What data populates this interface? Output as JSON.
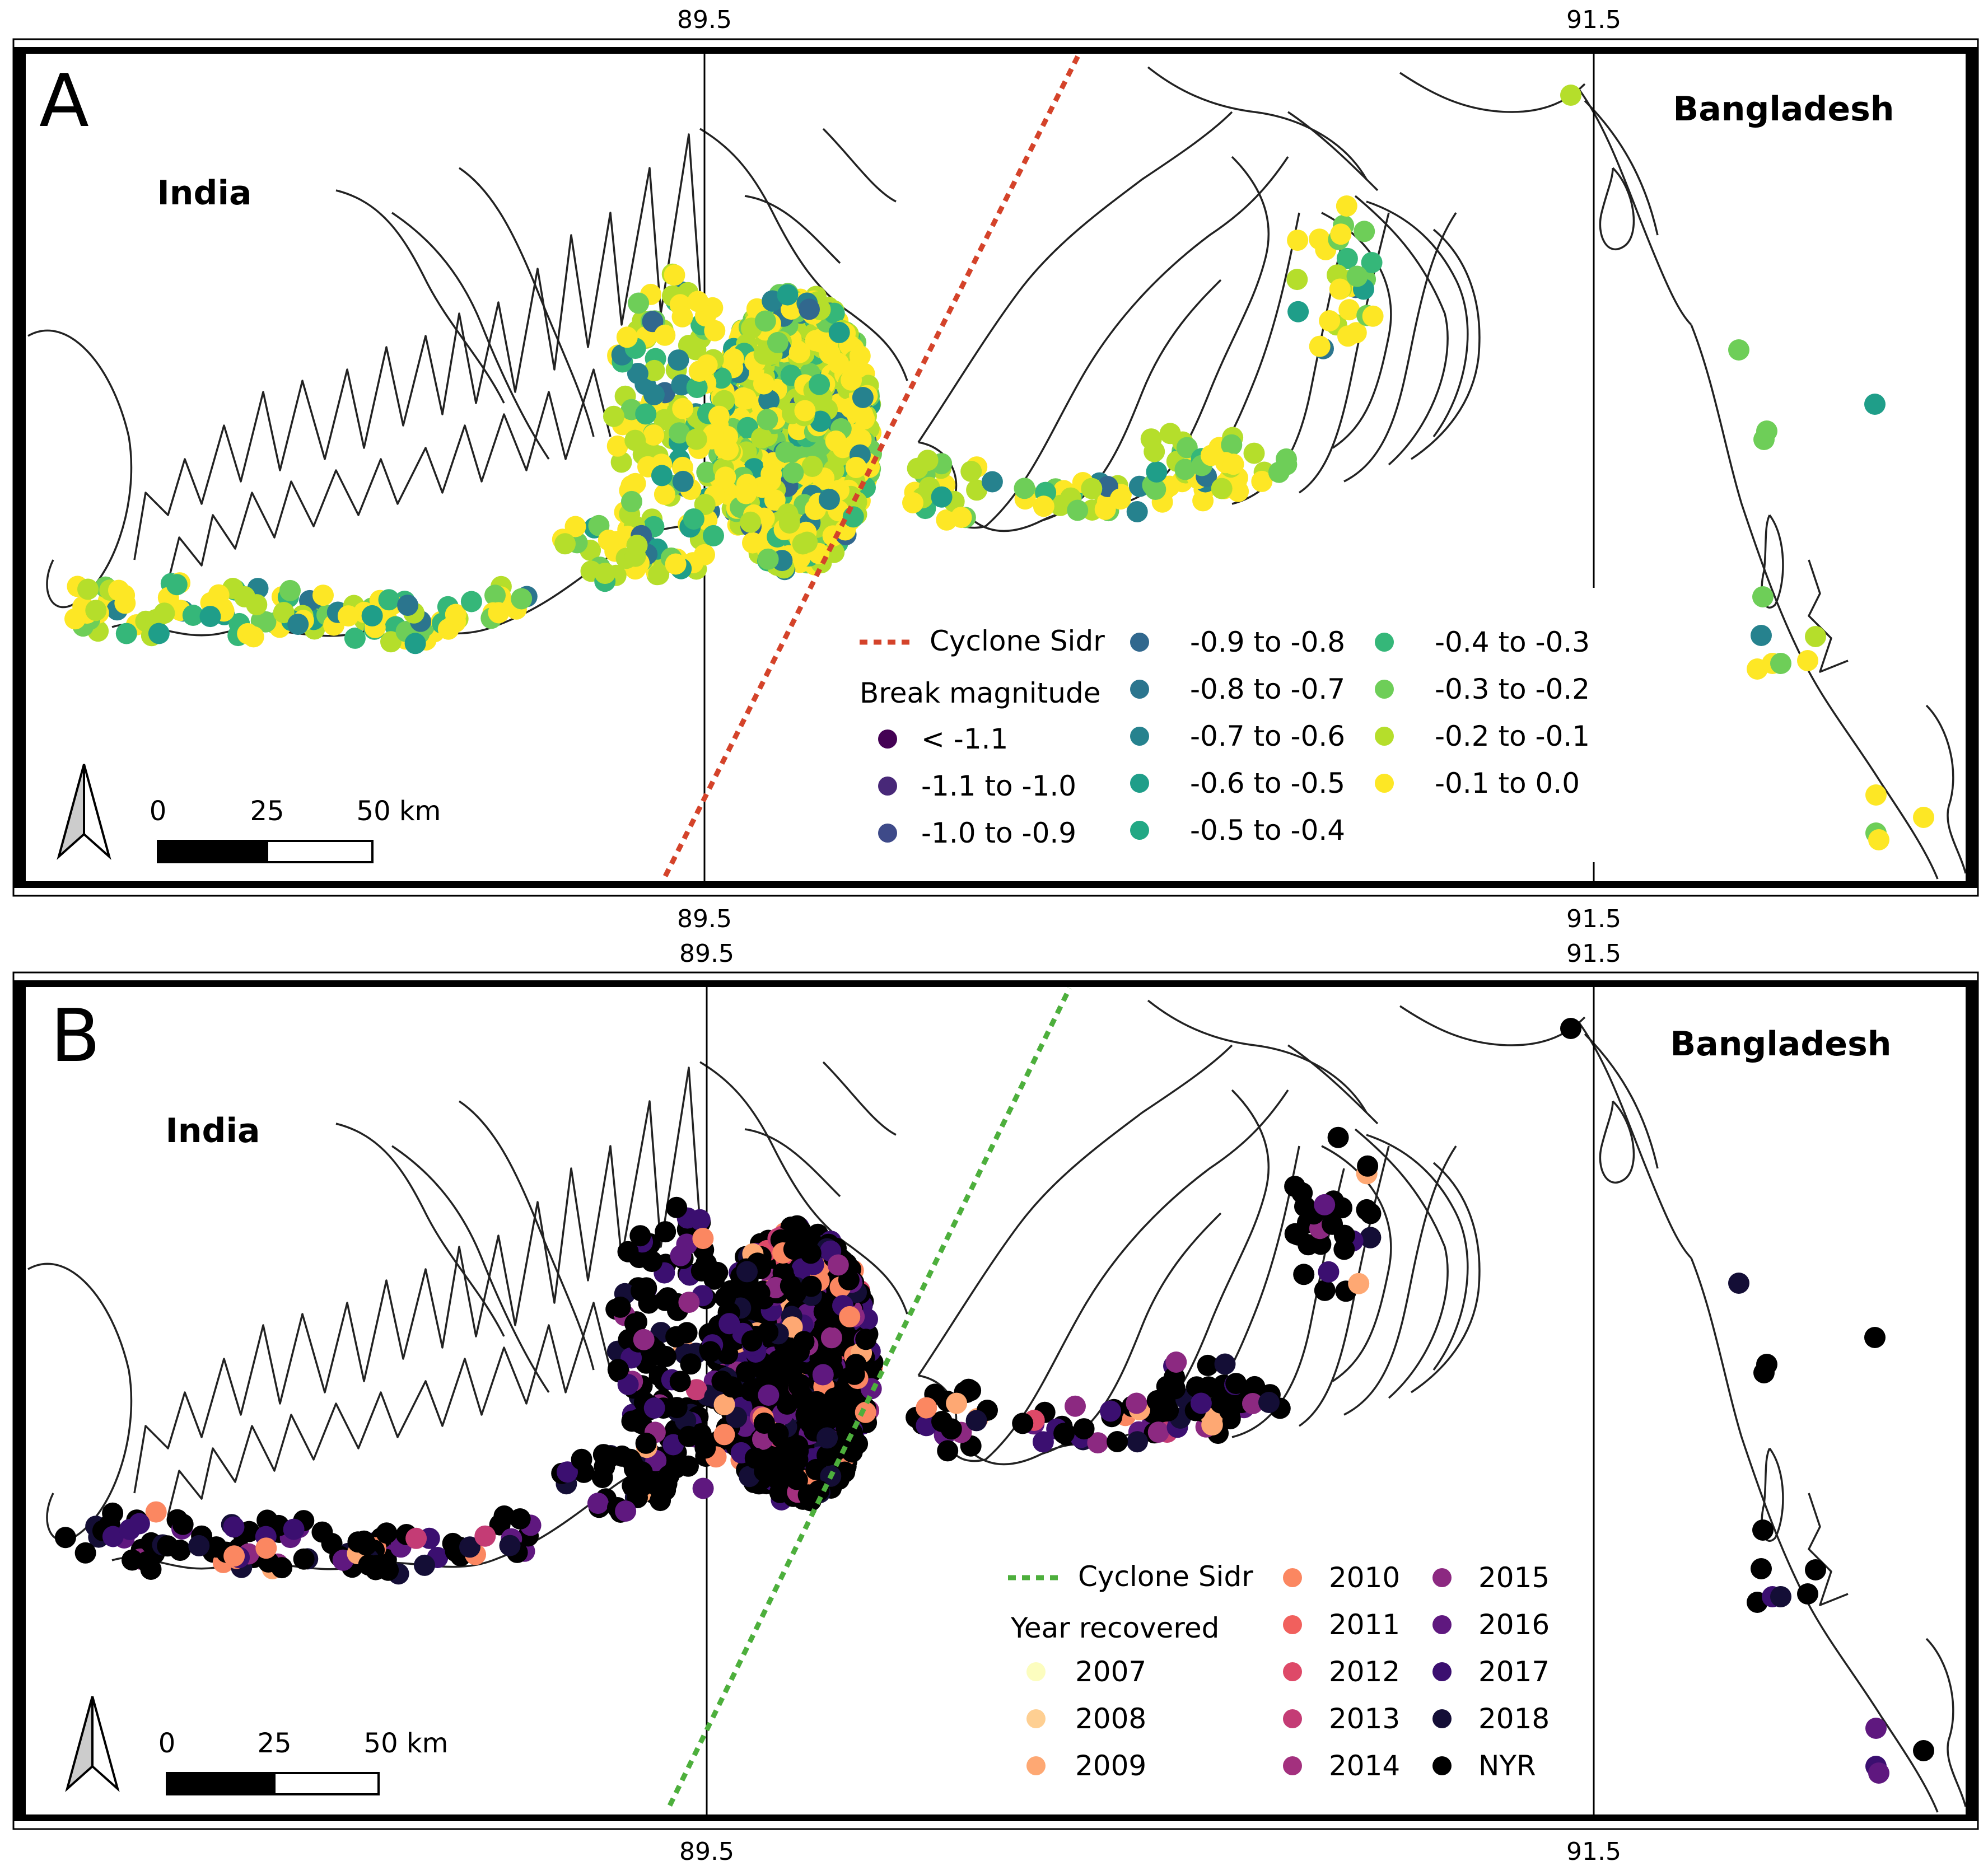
{
  "panels": [
    {
      "letter": "A",
      "lon_ticks_top": [
        "89.5",
        "91.5"
      ],
      "lon_ticks_bottom": [
        "89.5",
        "91.5"
      ],
      "countries": [
        "India",
        "Bangladesh"
      ],
      "track_label": "Cyclone Sidr",
      "track_color": "#d4432a",
      "legend_title": "Break magnitude",
      "legend_items": [
        {
          "label": "< -1.1",
          "color": "#440154"
        },
        {
          "label": "-1.1 to -1.0",
          "color": "#482878"
        },
        {
          "label": "-1.0 to -0.9",
          "color": "#3e4a89"
        },
        {
          "label": "-0.9 to -0.8",
          "color": "#31688e"
        },
        {
          "label": "-0.8 to -0.7",
          "color": "#2b758e"
        },
        {
          "label": "-0.7 to -0.6",
          "color": "#26828e"
        },
        {
          "label": "-0.6 to -0.5",
          "color": "#1f9e89"
        },
        {
          "label": "-0.5 to -0.4",
          "color": "#22a884"
        },
        {
          "label": "-0.4 to -0.3",
          "color": "#35b779"
        },
        {
          "label": "-0.3 to -0.2",
          "color": "#6ece58"
        },
        {
          "label": "-0.2 to -0.1",
          "color": "#b5de2b"
        },
        {
          "label": "-0.1 to 0.0",
          "color": "#fde725"
        }
      ],
      "scale_labels": [
        "0",
        "25",
        "50 km"
      ]
    },
    {
      "letter": "B",
      "lon_ticks_top": [
        "89.5",
        "91.5"
      ],
      "lon_ticks_bottom": [
        "89.5",
        "91.5"
      ],
      "countries": [
        "India",
        "Bangladesh"
      ],
      "track_label": "Cyclone Sidr",
      "track_color": "#4daf3c",
      "legend_title": "Year recovered",
      "legend_items": [
        {
          "label": "2007",
          "color": "#fcfdbf"
        },
        {
          "label": "2008",
          "color": "#fecf92"
        },
        {
          "label": "2009",
          "color": "#fea873"
        },
        {
          "label": "2010",
          "color": "#fb8761"
        },
        {
          "label": "2011",
          "color": "#f1605d"
        },
        {
          "label": "2012",
          "color": "#de4968"
        },
        {
          "label": "2013",
          "color": "#c43c75"
        },
        {
          "label": "2014",
          "color": "#a3307e"
        },
        {
          "label": "2015",
          "color": "#8c2981"
        },
        {
          "label": "2016",
          "color": "#5f187f"
        },
        {
          "label": "2017",
          "color": "#3b0f70"
        },
        {
          "label": "2018",
          "color": "#140e36"
        },
        {
          "label": "NYR",
          "color": "#000000"
        }
      ],
      "scale_labels": [
        "0",
        "25",
        "50 km"
      ]
    }
  ]
}
